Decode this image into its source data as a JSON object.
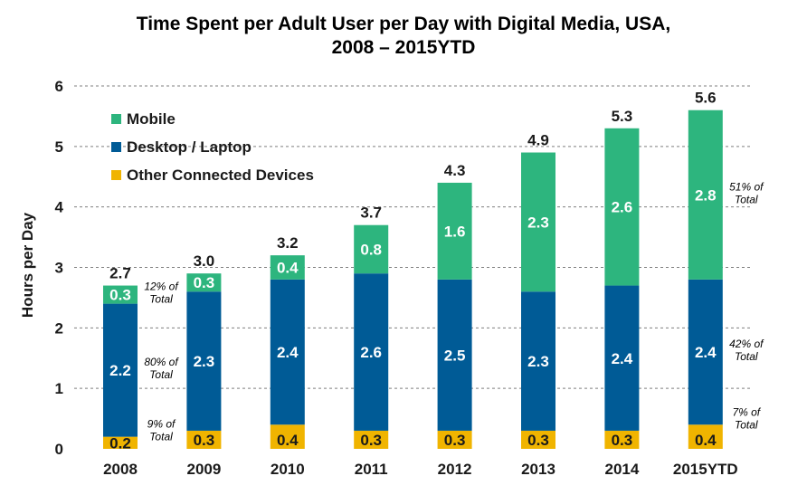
{
  "chart_data": {
    "type": "bar",
    "stacked": true,
    "title_lines": [
      "Time Spent per Adult User per Day with Digital Media, USA,",
      "2008 – 2015YTD"
    ],
    "ylabel": "Hours per Day",
    "ylim": [
      0,
      6
    ],
    "yticks": [
      "0",
      "1",
      "2",
      "3",
      "4",
      "5",
      "6"
    ],
    "grid": true,
    "legend_position": "top-left",
    "categories": [
      "2008",
      "2009",
      "2010",
      "2011",
      "2012",
      "2013",
      "2014",
      "2015YTD"
    ],
    "series": [
      {
        "name": "Other Connected Devices",
        "color": "#f0b400",
        "values": [
          0.2,
          0.3,
          0.4,
          0.3,
          0.3,
          0.3,
          0.3,
          0.4
        ],
        "labels": [
          "0.2",
          "0.3",
          "0.4",
          "0.3",
          "0.3",
          "0.3",
          "0.3",
          "0.4"
        ]
      },
      {
        "name": "Desktop / Laptop",
        "color": "#005b96",
        "values": [
          2.2,
          2.3,
          2.4,
          2.6,
          2.5,
          2.3,
          2.4,
          2.4
        ],
        "labels": [
          "2.2",
          "2.3",
          "2.4",
          "2.6",
          "2.5",
          "2.3",
          "2.4",
          "2.4"
        ]
      },
      {
        "name": "Mobile",
        "color": "#2db57e",
        "values": [
          0.3,
          0.3,
          0.4,
          0.8,
          1.6,
          2.3,
          2.6,
          2.8
        ],
        "labels": [
          "0.3",
          "0.3",
          "0.4",
          "0.8",
          "1.6",
          "2.3",
          "2.6",
          "2.8"
        ]
      }
    ],
    "legend_order": [
      "Mobile",
      "Desktop / Laptop",
      "Other Connected Devices"
    ],
    "totals": [
      2.7,
      3.0,
      3.2,
      3.7,
      4.3,
      4.9,
      5.3,
      5.6
    ],
    "total_labels": [
      "2.7",
      "3.0",
      "3.2",
      "3.7",
      "4.3",
      "4.9",
      "5.3",
      "5.6"
    ],
    "annotations": [
      {
        "category": "2008",
        "series": "Mobile",
        "lines": [
          "12% of",
          "Total"
        ]
      },
      {
        "category": "2008",
        "series": "Desktop / Laptop",
        "lines": [
          "80% of",
          "Total"
        ]
      },
      {
        "category": "2008",
        "series": "Other Connected Devices",
        "lines": [
          "9% of",
          "Total"
        ]
      },
      {
        "category": "2015YTD",
        "series": "Mobile",
        "lines": [
          "51% of",
          "Total"
        ]
      },
      {
        "category": "2015YTD",
        "series": "Desktop / Laptop",
        "lines": [
          "42% of",
          "Total"
        ]
      },
      {
        "category": "2015YTD",
        "series": "Other Connected Devices",
        "lines": [
          "7% of",
          "Total"
        ]
      }
    ]
  }
}
